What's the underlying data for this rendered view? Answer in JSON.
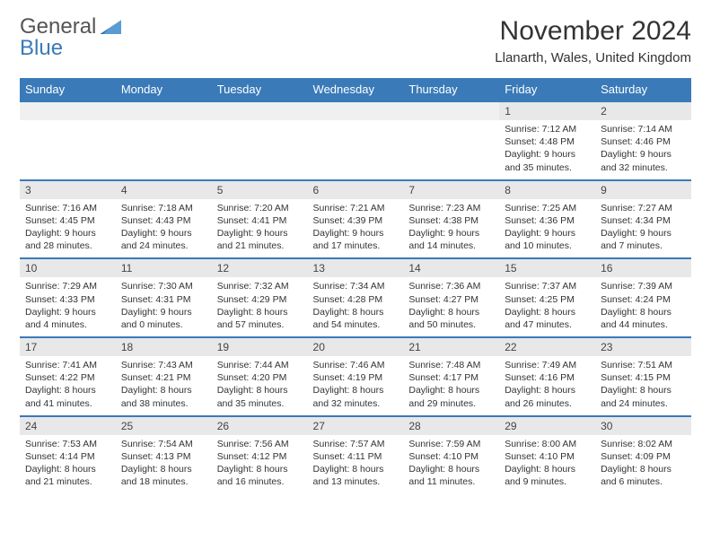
{
  "logo": {
    "line1": "General",
    "line2": "Blue"
  },
  "title": "November 2024",
  "location": "Llanarth, Wales, United Kingdom",
  "colors": {
    "header_bg": "#3a7ab8",
    "header_text": "#ffffff",
    "daynum_bg": "#e8e8e8",
    "rule": "#3a7ab8",
    "text": "#333333"
  },
  "day_headers": [
    "Sunday",
    "Monday",
    "Tuesday",
    "Wednesday",
    "Thursday",
    "Friday",
    "Saturday"
  ],
  "weeks": [
    [
      {
        "n": "",
        "sunrise": "",
        "sunset": "",
        "daylight": ""
      },
      {
        "n": "",
        "sunrise": "",
        "sunset": "",
        "daylight": ""
      },
      {
        "n": "",
        "sunrise": "",
        "sunset": "",
        "daylight": ""
      },
      {
        "n": "",
        "sunrise": "",
        "sunset": "",
        "daylight": ""
      },
      {
        "n": "",
        "sunrise": "",
        "sunset": "",
        "daylight": ""
      },
      {
        "n": "1",
        "sunrise": "Sunrise: 7:12 AM",
        "sunset": "Sunset: 4:48 PM",
        "daylight": "Daylight: 9 hours and 35 minutes."
      },
      {
        "n": "2",
        "sunrise": "Sunrise: 7:14 AM",
        "sunset": "Sunset: 4:46 PM",
        "daylight": "Daylight: 9 hours and 32 minutes."
      }
    ],
    [
      {
        "n": "3",
        "sunrise": "Sunrise: 7:16 AM",
        "sunset": "Sunset: 4:45 PM",
        "daylight": "Daylight: 9 hours and 28 minutes."
      },
      {
        "n": "4",
        "sunrise": "Sunrise: 7:18 AM",
        "sunset": "Sunset: 4:43 PM",
        "daylight": "Daylight: 9 hours and 24 minutes."
      },
      {
        "n": "5",
        "sunrise": "Sunrise: 7:20 AM",
        "sunset": "Sunset: 4:41 PM",
        "daylight": "Daylight: 9 hours and 21 minutes."
      },
      {
        "n": "6",
        "sunrise": "Sunrise: 7:21 AM",
        "sunset": "Sunset: 4:39 PM",
        "daylight": "Daylight: 9 hours and 17 minutes."
      },
      {
        "n": "7",
        "sunrise": "Sunrise: 7:23 AM",
        "sunset": "Sunset: 4:38 PM",
        "daylight": "Daylight: 9 hours and 14 minutes."
      },
      {
        "n": "8",
        "sunrise": "Sunrise: 7:25 AM",
        "sunset": "Sunset: 4:36 PM",
        "daylight": "Daylight: 9 hours and 10 minutes."
      },
      {
        "n": "9",
        "sunrise": "Sunrise: 7:27 AM",
        "sunset": "Sunset: 4:34 PM",
        "daylight": "Daylight: 9 hours and 7 minutes."
      }
    ],
    [
      {
        "n": "10",
        "sunrise": "Sunrise: 7:29 AM",
        "sunset": "Sunset: 4:33 PM",
        "daylight": "Daylight: 9 hours and 4 minutes."
      },
      {
        "n": "11",
        "sunrise": "Sunrise: 7:30 AM",
        "sunset": "Sunset: 4:31 PM",
        "daylight": "Daylight: 9 hours and 0 minutes."
      },
      {
        "n": "12",
        "sunrise": "Sunrise: 7:32 AM",
        "sunset": "Sunset: 4:29 PM",
        "daylight": "Daylight: 8 hours and 57 minutes."
      },
      {
        "n": "13",
        "sunrise": "Sunrise: 7:34 AM",
        "sunset": "Sunset: 4:28 PM",
        "daylight": "Daylight: 8 hours and 54 minutes."
      },
      {
        "n": "14",
        "sunrise": "Sunrise: 7:36 AM",
        "sunset": "Sunset: 4:27 PM",
        "daylight": "Daylight: 8 hours and 50 minutes."
      },
      {
        "n": "15",
        "sunrise": "Sunrise: 7:37 AM",
        "sunset": "Sunset: 4:25 PM",
        "daylight": "Daylight: 8 hours and 47 minutes."
      },
      {
        "n": "16",
        "sunrise": "Sunrise: 7:39 AM",
        "sunset": "Sunset: 4:24 PM",
        "daylight": "Daylight: 8 hours and 44 minutes."
      }
    ],
    [
      {
        "n": "17",
        "sunrise": "Sunrise: 7:41 AM",
        "sunset": "Sunset: 4:22 PM",
        "daylight": "Daylight: 8 hours and 41 minutes."
      },
      {
        "n": "18",
        "sunrise": "Sunrise: 7:43 AM",
        "sunset": "Sunset: 4:21 PM",
        "daylight": "Daylight: 8 hours and 38 minutes."
      },
      {
        "n": "19",
        "sunrise": "Sunrise: 7:44 AM",
        "sunset": "Sunset: 4:20 PM",
        "daylight": "Daylight: 8 hours and 35 minutes."
      },
      {
        "n": "20",
        "sunrise": "Sunrise: 7:46 AM",
        "sunset": "Sunset: 4:19 PM",
        "daylight": "Daylight: 8 hours and 32 minutes."
      },
      {
        "n": "21",
        "sunrise": "Sunrise: 7:48 AM",
        "sunset": "Sunset: 4:17 PM",
        "daylight": "Daylight: 8 hours and 29 minutes."
      },
      {
        "n": "22",
        "sunrise": "Sunrise: 7:49 AM",
        "sunset": "Sunset: 4:16 PM",
        "daylight": "Daylight: 8 hours and 26 minutes."
      },
      {
        "n": "23",
        "sunrise": "Sunrise: 7:51 AM",
        "sunset": "Sunset: 4:15 PM",
        "daylight": "Daylight: 8 hours and 24 minutes."
      }
    ],
    [
      {
        "n": "24",
        "sunrise": "Sunrise: 7:53 AM",
        "sunset": "Sunset: 4:14 PM",
        "daylight": "Daylight: 8 hours and 21 minutes."
      },
      {
        "n": "25",
        "sunrise": "Sunrise: 7:54 AM",
        "sunset": "Sunset: 4:13 PM",
        "daylight": "Daylight: 8 hours and 18 minutes."
      },
      {
        "n": "26",
        "sunrise": "Sunrise: 7:56 AM",
        "sunset": "Sunset: 4:12 PM",
        "daylight": "Daylight: 8 hours and 16 minutes."
      },
      {
        "n": "27",
        "sunrise": "Sunrise: 7:57 AM",
        "sunset": "Sunset: 4:11 PM",
        "daylight": "Daylight: 8 hours and 13 minutes."
      },
      {
        "n": "28",
        "sunrise": "Sunrise: 7:59 AM",
        "sunset": "Sunset: 4:10 PM",
        "daylight": "Daylight: 8 hours and 11 minutes."
      },
      {
        "n": "29",
        "sunrise": "Sunrise: 8:00 AM",
        "sunset": "Sunset: 4:10 PM",
        "daylight": "Daylight: 8 hours and 9 minutes."
      },
      {
        "n": "30",
        "sunrise": "Sunrise: 8:02 AM",
        "sunset": "Sunset: 4:09 PM",
        "daylight": "Daylight: 8 hours and 6 minutes."
      }
    ]
  ]
}
